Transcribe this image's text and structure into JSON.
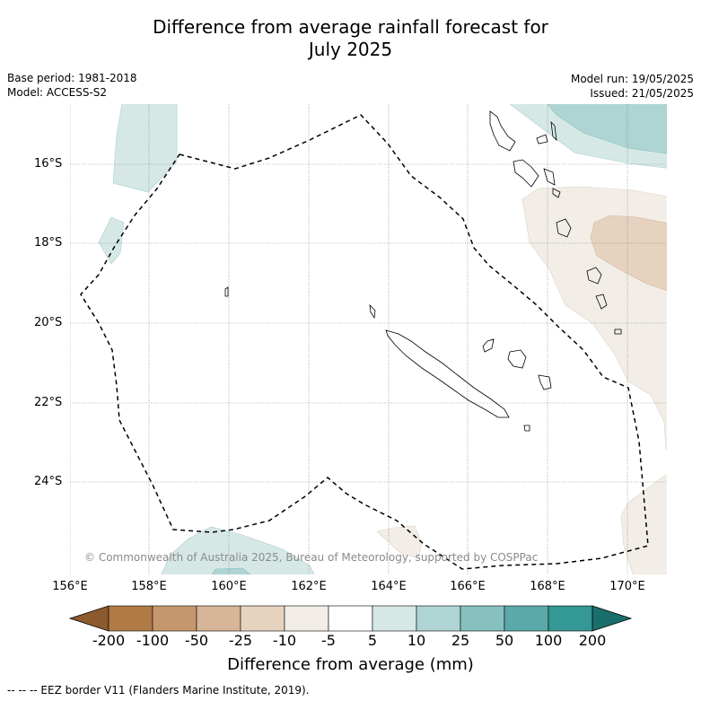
{
  "title_line1": "Difference from average rainfall forecast for",
  "title_line2": "July 2025",
  "base_period": "Base period: 1981-2018",
  "model": "Model: ACCESS-S2",
  "model_run": "Model run: 19/05/2025",
  "issued": "Issued: 21/05/2025",
  "lat_labels": [
    "16°S",
    "18°S",
    "20°S",
    "22°S",
    "24°S"
  ],
  "lon_labels": [
    "156°E",
    "158°E",
    "160°E",
    "162°E",
    "164°E",
    "166°E",
    "168°E",
    "170°E"
  ],
  "copyright": "© Commonwealth of Australia 2025, Bureau of Meteorology, supported by COSPPac",
  "colorbar": {
    "ticks": [
      "-200",
      "-100",
      "-50",
      "-25",
      "-10",
      "-5",
      "5",
      "10",
      "25",
      "50",
      "100",
      "200"
    ],
    "colors": [
      "#8c5a2e",
      "#b07a46",
      "#c5976c",
      "#d7b598",
      "#e7d2c0",
      "#f2eee7",
      "#ffffff",
      "#d6e8e6",
      "#aed4d3",
      "#86c1bf",
      "#5ba9a8",
      "#349894",
      "#1a6e6b"
    ],
    "label": "Difference from average (mm)"
  },
  "footnote": "--  --  -- EEZ border V11 (Flanders Marine Institute, 2019)."
}
